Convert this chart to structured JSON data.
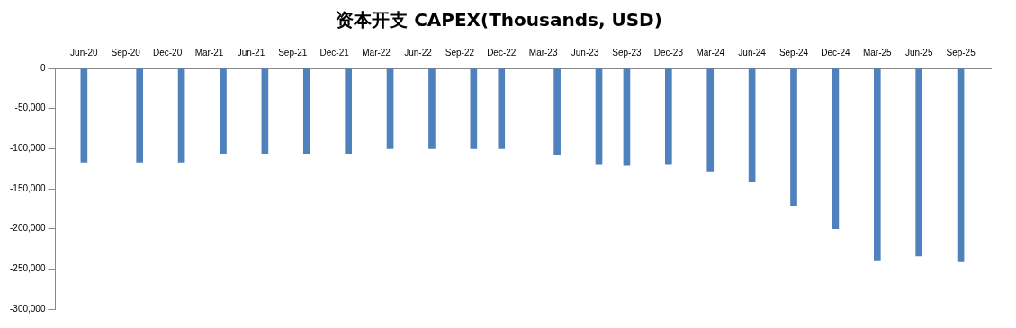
{
  "chart_data": {
    "type": "bar",
    "title": "资本开支 CAPEX(Thousands, USD)",
    "x": [
      "2020-06",
      "2020-10",
      "2021-01",
      "2021-04",
      "2021-07",
      "2021-10",
      "2022-01",
      "2022-04",
      "2022-07",
      "2022-10",
      "2022-12",
      "2023-04",
      "2023-07",
      "2023-09",
      "2023-12",
      "2024-03",
      "2024-06",
      "2024-09",
      "2024-12",
      "2025-03",
      "2025-06",
      "2025-09"
    ],
    "values": [
      -117000,
      -117000,
      -117000,
      -106000,
      -106000,
      -106000,
      -106000,
      -100000,
      -100000,
      -100000,
      -100000,
      -108000,
      -120000,
      -121000,
      -120000,
      -128000,
      -141000,
      -171000,
      -200000,
      -239000,
      -234000,
      -240000
    ],
    "color": "#4f81bd",
    "xlim": [
      "2020-05-15",
      "2025-09-20"
    ],
    "xticks": [
      {
        "value": "2020-06",
        "label": "Jun-20"
      },
      {
        "value": "2020-09",
        "label": "Sep-20"
      },
      {
        "value": "2020-12",
        "label": "Dec-20"
      },
      {
        "value": "2021-03",
        "label": "Mar-21"
      },
      {
        "value": "2021-06",
        "label": "Jun-21"
      },
      {
        "value": "2021-09",
        "label": "Sep-21"
      },
      {
        "value": "2021-12",
        "label": "Dec-21"
      },
      {
        "value": "2022-03",
        "label": "Mar-22"
      },
      {
        "value": "2022-06",
        "label": "Jun-22"
      },
      {
        "value": "2022-09",
        "label": "Sep-22"
      },
      {
        "value": "2022-12",
        "label": "Dec-22"
      },
      {
        "value": "2023-03",
        "label": "Mar-23"
      },
      {
        "value": "2023-06",
        "label": "Jun-23"
      },
      {
        "value": "2023-09",
        "label": "Sep-23"
      },
      {
        "value": "2023-12",
        "label": "Dec-23"
      },
      {
        "value": "2024-03",
        "label": "Mar-24"
      },
      {
        "value": "2024-06",
        "label": "Jun-24"
      },
      {
        "value": "2024-09",
        "label": "Sep-24"
      },
      {
        "value": "2024-12",
        "label": "Dec-24"
      },
      {
        "value": "2025-03",
        "label": "Mar-25"
      },
      {
        "value": "2025-06",
        "label": "Jun-25"
      },
      {
        "value": "2025-09",
        "label": "Sep-25"
      }
    ],
    "ylim": [
      -300000,
      0
    ],
    "yticks": [
      {
        "value": -300000,
        "label": "-300,000"
      },
      {
        "value": -250000,
        "label": "-250,000"
      },
      {
        "value": -200000,
        "label": "-200,000"
      },
      {
        "value": -150000,
        "label": "-150,000"
      },
      {
        "value": -100000,
        "label": "-100,000"
      },
      {
        "value": -50000,
        "label": "-50,000"
      },
      0
    ],
    "grid": false,
    "legend": false
  }
}
